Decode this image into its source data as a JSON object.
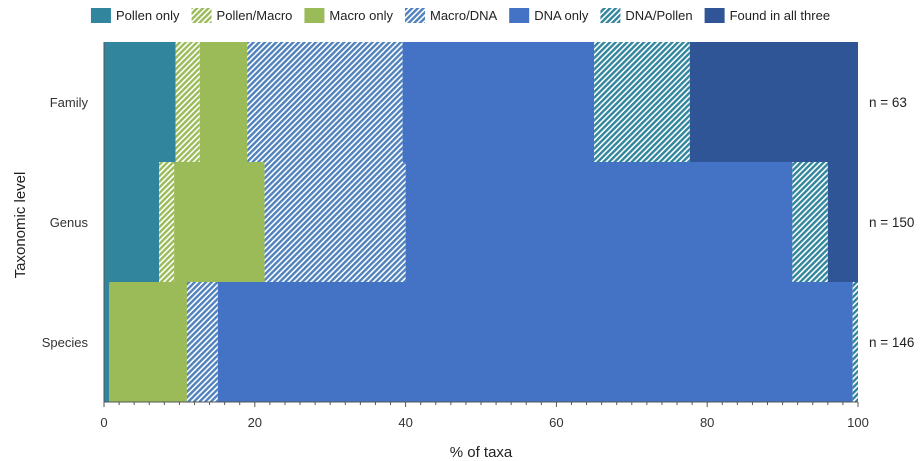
{
  "chart_data": {
    "type": "bar",
    "orientation": "horizontal",
    "stacked": true,
    "categories": [
      "Family",
      "Genus",
      "Species"
    ],
    "n_labels": [
      "n = 63",
      "n = 150",
      "n = 146"
    ],
    "series": [
      {
        "name": "Pollen only",
        "color": "#31859c",
        "pattern": "none",
        "values": [
          9.5,
          7.3,
          0.7
        ]
      },
      {
        "name": "Pollen/Macro",
        "color": "#9bbb59",
        "pattern": "hatch",
        "values": [
          3.2,
          2.0,
          0.0
        ]
      },
      {
        "name": "Macro only",
        "color": "#9bbb59",
        "pattern": "none",
        "values": [
          6.3,
          12.0,
          10.3
        ]
      },
      {
        "name": "Macro/DNA",
        "color": "#4f81bd",
        "pattern": "hatch",
        "values": [
          20.6,
          18.7,
          4.1
        ]
      },
      {
        "name": "DNA only",
        "color": "#4472c4",
        "pattern": "none",
        "values": [
          25.4,
          51.3,
          84.2
        ]
      },
      {
        "name": "DNA/Pollen",
        "color": "#31859c",
        "pattern": "hatch",
        "values": [
          12.7,
          4.7,
          0.7
        ]
      },
      {
        "name": "Found in all three",
        "color": "#2f5597",
        "pattern": "none",
        "values": [
          22.3,
          4.0,
          0.0
        ]
      }
    ],
    "xlabel": "% of taxa",
    "ylabel": "Taxonomic level",
    "xlim": [
      0,
      100
    ],
    "xticks": [
      0,
      20,
      40,
      60,
      80,
      100
    ],
    "grid": false,
    "legend_position": "top"
  }
}
